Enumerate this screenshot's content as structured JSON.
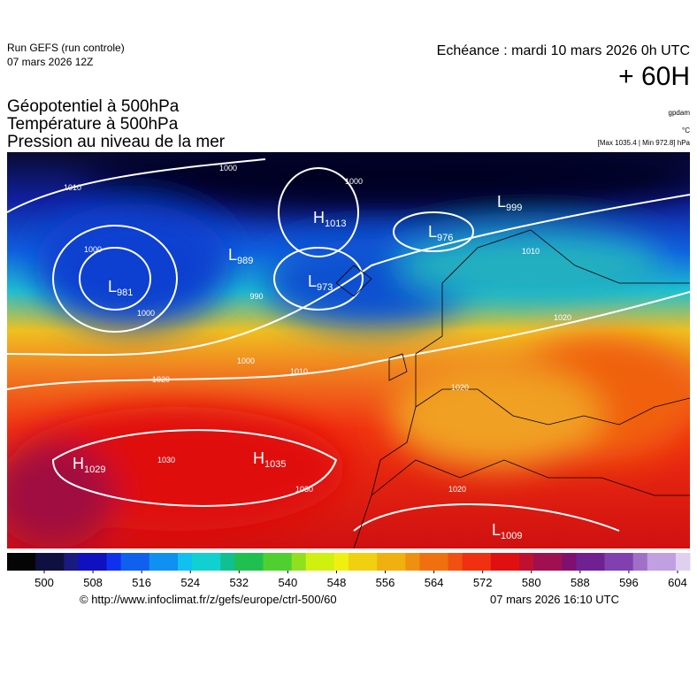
{
  "header": {
    "run": "Run GEFS (run controle)",
    "run_date": "07 mars 2026 12Z",
    "valid": "Echéance : mardi 10 mars 2026 0h UTC",
    "lead": "+ 60H"
  },
  "titles": [
    "Géopotentiel à 500hPa",
    "Température à 500hPa",
    "Pression au niveau de la mer"
  ],
  "units": {
    "geopotential": "gpdam",
    "temperature": "°C",
    "pressure": "[Max 1035.4 | Min 972.8] hPa"
  },
  "centers": [
    {
      "symbol": "H",
      "value": 1029
    },
    {
      "symbol": "H",
      "value": 1035
    },
    {
      "symbol": "L",
      "value": 981
    },
    {
      "symbol": "L",
      "value": 989
    },
    {
      "symbol": "H",
      "value": 1013
    },
    {
      "symbol": "L",
      "value": 973
    },
    {
      "symbol": "L",
      "value": 976
    },
    {
      "symbol": "L",
      "value": 999
    },
    {
      "symbol": "L",
      "value": 1009
    }
  ],
  "isobar_labels": [
    1000,
    1010,
    1000,
    1000,
    990,
    1000,
    1010,
    1020,
    1030,
    1030,
    1000,
    1010,
    1020,
    1020,
    1020
  ],
  "colorbar_ticks": [
    500,
    508,
    516,
    524,
    532,
    540,
    548,
    556,
    564,
    572,
    580,
    588,
    596,
    604
  ],
  "footer": {
    "source": "© http://www.infoclimat.fr/z/gefs/europe/ctrl-500/60",
    "made": "07 mars 2026 16:10 UTC"
  }
}
